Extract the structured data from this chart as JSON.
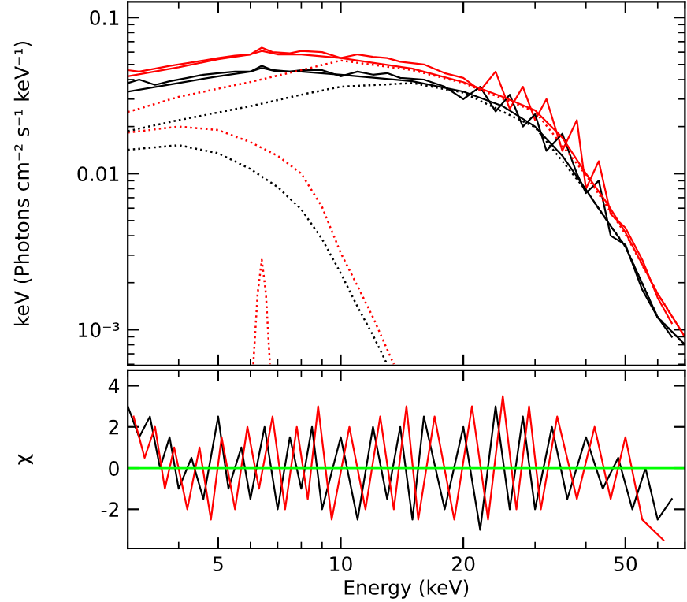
{
  "chart_data": [
    {
      "type": "line",
      "ylabel": "keV (Photons cm⁻² s⁻¹ keV⁻¹)",
      "log": "xy",
      "xlim": [
        3,
        70
      ],
      "ylim": [
        0.00059,
        0.126
      ],
      "xticks": [
        5,
        10,
        20,
        50
      ],
      "yticks": [
        0.1,
        0.01,
        {
          "value": 0.001,
          "label": "10⁻³"
        }
      ],
      "tick_labels": "y",
      "grid": false,
      "legend": false,
      "series": [
        {
          "color": "#ff0000",
          "line_style": "solid",
          "x": [
            3,
            3.2,
            3.5,
            3.8,
            4.2,
            4.6,
            5,
            5.5,
            6,
            6.4,
            6.8,
            7.5,
            8,
            9,
            10,
            11,
            12,
            13,
            14,
            16,
            18,
            20,
            22,
            24,
            26,
            28,
            30,
            32,
            35,
            38,
            40,
            43,
            46,
            50,
            55,
            60,
            65
          ],
          "values": [
            0.046,
            0.045,
            0.047,
            0.049,
            0.051,
            0.053,
            0.055,
            0.057,
            0.058,
            0.064,
            0.06,
            0.059,
            0.061,
            0.06,
            0.055,
            0.058,
            0.056,
            0.055,
            0.052,
            0.05,
            0.044,
            0.041,
            0.034,
            0.045,
            0.026,
            0.036,
            0.022,
            0.03,
            0.014,
            0.022,
            0.008,
            0.012,
            0.0055,
            0.0045,
            0.0028,
            0.0016,
            0.0011
          ]
        },
        {
          "color": "#000000",
          "line_style": "solid",
          "x": [
            3,
            3.2,
            3.5,
            3.8,
            4.2,
            4.6,
            5,
            5.5,
            6,
            6.4,
            6.8,
            7.5,
            8,
            9,
            10,
            11,
            12,
            13,
            14,
            16,
            18,
            20,
            22,
            24,
            26,
            28,
            30,
            32,
            35,
            38,
            40,
            43,
            46,
            50,
            55,
            60,
            65
          ],
          "values": [
            0.038,
            0.04,
            0.037,
            0.039,
            0.041,
            0.043,
            0.044,
            0.045,
            0.045,
            0.049,
            0.046,
            0.045,
            0.046,
            0.046,
            0.042,
            0.045,
            0.043,
            0.044,
            0.041,
            0.04,
            0.036,
            0.03,
            0.036,
            0.025,
            0.032,
            0.02,
            0.024,
            0.014,
            0.018,
            0.01,
            0.0075,
            0.009,
            0.004,
            0.0035,
            0.0018,
            0.0012,
            0.0009
          ]
        },
        {
          "color": "#ff0000",
          "line_style": "solid",
          "x": [
            3,
            4,
            5,
            6,
            6.4,
            7,
            8,
            10,
            15,
            20,
            25,
            30,
            35,
            40,
            45,
            50,
            60,
            70
          ],
          "values": [
            0.042,
            0.048,
            0.054,
            0.058,
            0.061,
            0.058,
            0.058,
            0.055,
            0.047,
            0.0385,
            0.031,
            0.0254,
            0.017,
            0.01,
            0.0065,
            0.0042,
            0.0017,
            0.0009
          ]
        },
        {
          "color": "#000000",
          "line_style": "solid",
          "x": [
            3,
            4,
            5,
            6,
            6.4,
            7,
            8,
            10,
            15,
            20,
            25,
            30,
            35,
            40,
            45,
            50,
            60,
            70
          ],
          "values": [
            0.0335,
            0.038,
            0.042,
            0.045,
            0.0475,
            0.045,
            0.045,
            0.043,
            0.039,
            0.0335,
            0.027,
            0.02,
            0.013,
            0.0079,
            0.005,
            0.0034,
            0.0012,
            0.0008
          ]
        },
        {
          "color": "#ff0000",
          "line_style": "dotted",
          "x": [
            3,
            4,
            6,
            8,
            10,
            15,
            20,
            30,
            40,
            50,
            60,
            70
          ],
          "values": [
            0.0248,
            0.031,
            0.0386,
            0.046,
            0.053,
            0.046,
            0.038,
            0.025,
            0.0098,
            0.0041,
            0.0017,
            0.0009
          ]
        },
        {
          "color": "#000000",
          "line_style": "dotted",
          "x": [
            3,
            4,
            6,
            8,
            10,
            15,
            20,
            30,
            40,
            50,
            60,
            70
          ],
          "values": [
            0.0187,
            0.022,
            0.027,
            0.032,
            0.036,
            0.038,
            0.033,
            0.0198,
            0.0078,
            0.0034,
            0.0012,
            0.0008
          ]
        },
        {
          "color": "#ff0000",
          "line_style": "dotted",
          "x": [
            3,
            4,
            5,
            6,
            7,
            8,
            9,
            10,
            11,
            12,
            13.5
          ],
          "values": [
            0.0183,
            0.02,
            0.019,
            0.0159,
            0.013,
            0.01,
            0.0061,
            0.0031,
            0.0019,
            0.0012,
            0.0006
          ]
        },
        {
          "color": "#000000",
          "line_style": "dotted",
          "x": [
            3,
            4,
            5,
            6,
            7,
            8,
            9,
            10,
            11,
            12,
            13
          ],
          "values": [
            0.0142,
            0.0152,
            0.0135,
            0.0107,
            0.0082,
            0.0059,
            0.0038,
            0.0023,
            0.0014,
            0.00092,
            0.0006
          ]
        },
        {
          "color": "#ff0000",
          "line_style": "dotted",
          "x": [
            6.1,
            6.25,
            6.4,
            6.55,
            6.7
          ],
          "values": [
            0.0006,
            0.0017,
            0.0028,
            0.0017,
            0.0006
          ]
        }
      ]
    },
    {
      "type": "line",
      "xlabel": "Energy (keV)",
      "ylabel": "χ",
      "log": "x",
      "xlim": [
        3,
        70
      ],
      "ylim": [
        -3.9,
        4.75
      ],
      "xticks": [
        5,
        10,
        20,
        50
      ],
      "yticks": [
        -2,
        0,
        2,
        4
      ],
      "grid": false,
      "legend": false,
      "ref_lines": [
        {
          "axis": "y",
          "value": 0,
          "color": "#00ff00",
          "line_style": "solid"
        }
      ],
      "series": [
        {
          "color": "#000000",
          "line_style": "solid",
          "x": [
            3,
            3.2,
            3.4,
            3.6,
            3.8,
            4,
            4.3,
            4.6,
            5,
            5.3,
            5.7,
            6,
            6.5,
            7,
            7.5,
            8,
            8.5,
            9,
            10,
            11,
            12,
            13,
            14,
            15,
            16,
            18,
            20,
            22,
            24,
            26,
            28,
            30,
            33,
            36,
            40,
            44,
            48,
            52,
            56,
            60,
            65
          ],
          "values": [
            3,
            1.5,
            2.5,
            0,
            1.5,
            -1,
            0.5,
            -1.5,
            2.5,
            -1,
            1,
            -1.5,
            2,
            -2,
            1.5,
            -1,
            2,
            -2,
            1.5,
            -2.5,
            2,
            -1.5,
            2,
            -2.5,
            2.5,
            -2,
            2,
            -3,
            3,
            -2,
            2.5,
            -2,
            2,
            -1.5,
            1.5,
            -1,
            0.5,
            -2,
            0,
            -2.5,
            -1.5
          ]
        },
        {
          "color": "#ff0000",
          "line_style": "solid",
          "x": [
            3.1,
            3.3,
            3.5,
            3.7,
            3.9,
            4.2,
            4.5,
            4.8,
            5.1,
            5.5,
            5.9,
            6.3,
            6.8,
            7.3,
            7.8,
            8.3,
            8.8,
            9.5,
            10.5,
            11.5,
            12.5,
            13.5,
            14.5,
            15.5,
            17,
            19,
            21,
            23,
            25,
            27,
            29,
            31,
            34,
            38,
            42,
            46,
            50,
            55,
            62
          ],
          "values": [
            2.5,
            0.5,
            2,
            -1,
            1,
            -2,
            1,
            -2.5,
            1.5,
            -2,
            2,
            -1,
            2.5,
            -2,
            2,
            -1.5,
            3,
            -2.5,
            2,
            -2,
            2.5,
            -2,
            3,
            -2.5,
            2.5,
            -2.5,
            3,
            -2.5,
            3.5,
            -2,
            3,
            -2,
            2.5,
            -1.5,
            2,
            -1.5,
            1.5,
            -2.5,
            -3.5
          ]
        }
      ]
    }
  ]
}
